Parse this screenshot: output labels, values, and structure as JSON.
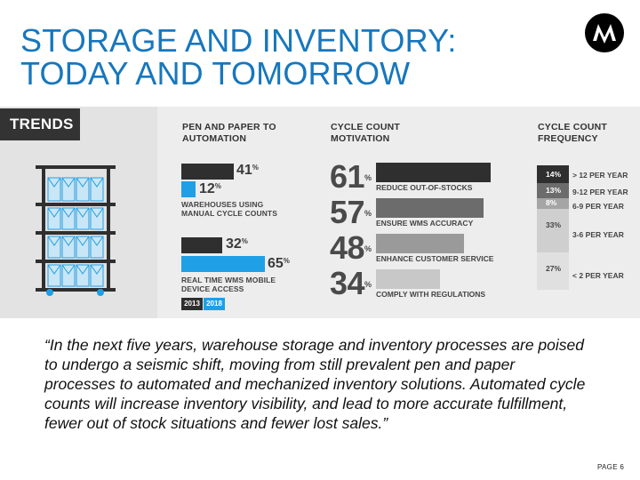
{
  "slide": {
    "title_line1": "STORAGE AND INVENTORY:",
    "title_line2": "TODAY AND TOMORROW",
    "page_label": "PAGE 6"
  },
  "colors": {
    "title_blue": "#1777bd",
    "bar_dark": "#2f2f2f",
    "bar_blue": "#1f9fe6"
  },
  "infographic": {
    "trends_label": "TRENDS",
    "pen_paper": {
      "heading_line1": "PEN AND PAPER TO",
      "heading_line2": "AUTOMATION",
      "manual_2013": "41",
      "manual_2018": "12",
      "manual_label_line1": "WAREHOUSES USING",
      "manual_label_line2": "MANUAL CYCLE COUNTS",
      "realtime_2013": "32",
      "realtime_2018": "65",
      "realtime_label_line1": "REAL TIME WMS MOBILE",
      "realtime_label_line2": "DEVICE ACCESS",
      "pct_sign": "%",
      "year_a": "2013",
      "year_b": "2018"
    },
    "motivation": {
      "heading_line1": "CYCLE COUNT",
      "heading_line2": "MOTIVATION",
      "items": [
        {
          "value": "61",
          "label": "REDUCE OUT-OF-STOCKS"
        },
        {
          "value": "57",
          "label": "ENSURE WMS ACCURACY"
        },
        {
          "value": "48",
          "label": "ENHANCE CUSTOMER SERVICE"
        },
        {
          "value": "34",
          "label": "COMPLY WITH REGULATIONS"
        }
      ],
      "pct_sign": "%"
    },
    "frequency": {
      "heading_line1": "CYCLE COUNT",
      "heading_line2": "FREQUENCY",
      "items": [
        {
          "value": "14%",
          "label": "> 12 PER YEAR"
        },
        {
          "value": "13%",
          "label": "9-12 PER YEAR"
        },
        {
          "value": "8%",
          "label": "6-9 PER YEAR"
        },
        {
          "value": "33%",
          "label": "3-6 PER YEAR"
        },
        {
          "value": "27%",
          "label": "< 2 PER YEAR"
        }
      ]
    }
  },
  "quote": "“In the next five years, warehouse storage and inventory processes are poised to undergo a seismic shift, moving from still prevalent pen and paper processes to automated and mechanized inventory solutions. Automated cycle counts will increase inventory visibility, and lead to more accurate fulfillment, fewer out of stock situations and fewer lost sales.”"
}
